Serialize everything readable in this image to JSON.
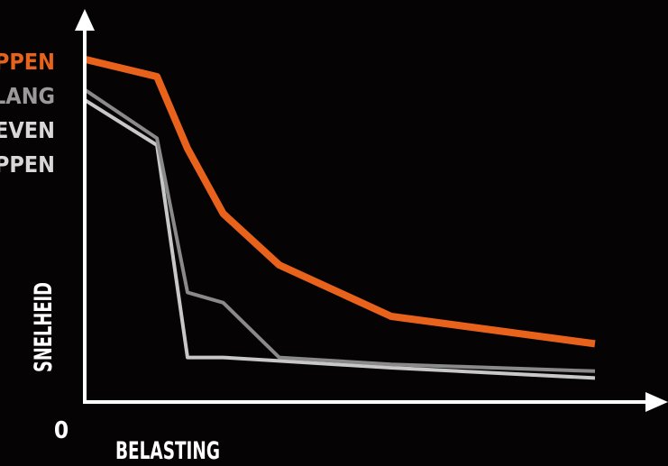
{
  "chart_data": {
    "type": "line",
    "xlabel": "BELASTING",
    "ylabel": "SNELHEID",
    "origin_label": "0",
    "legend_placement": "left",
    "grid": false,
    "x": [
      0,
      14,
      20,
      27,
      38,
      60,
      100
    ],
    "ylim": [
      0,
      100
    ],
    "xlim": [
      0,
      100
    ],
    "series": [
      {
        "name": "APPEN",
        "color": "#e8621c",
        "values": [
          100,
          95,
          74,
          55,
          40,
          25,
          17
        ]
      },
      {
        "name": "SLANG",
        "color": "#8a8a8a",
        "values": [
          91,
          77,
          32,
          29,
          13,
          11,
          9
        ]
      },
      {
        "name": "REVEN",
        "color": "#c8c8c8",
        "values": [
          88,
          75,
          13,
          13,
          12,
          10,
          7
        ]
      },
      {
        "name": "APPEN",
        "color": "#c8c8c8",
        "values": [
          88,
          75,
          13,
          13,
          12,
          10,
          7
        ]
      }
    ]
  }
}
